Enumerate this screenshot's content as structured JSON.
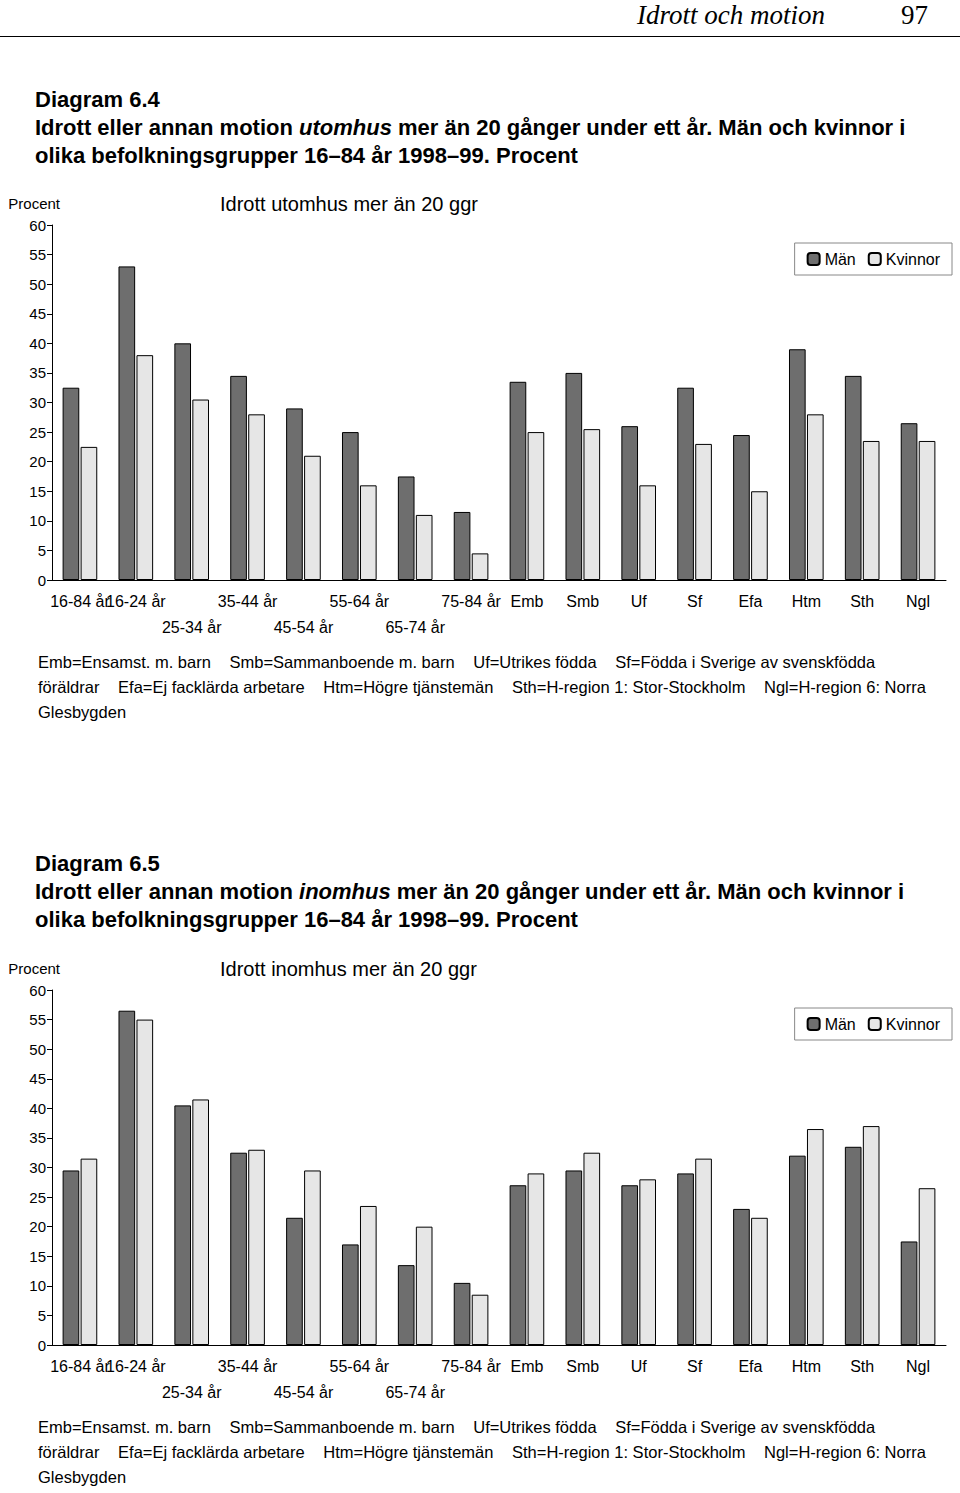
{
  "page": {
    "header": {
      "title": "Idrott och motion",
      "page": "97"
    },
    "figures": [
      {
        "label": "Diagram 6.4",
        "caption": [
          {
            "text": "Idrott eller annan motion "
          },
          {
            "text": "utomhus",
            "style": "italic"
          },
          {
            "text": " mer än 20 gånger under ett år. Män och kvinnor i olika befolkningsgrupper 16–84 år 1998–99. Procent"
          }
        ],
        "notes": [
          "Emb=Ensamst. m. barn",
          "Smb=Sammanboende m. barn",
          "Uf=Utrikes födda",
          "Sf=Födda i Sverige av svenskfödda föräldrar",
          "Efa=Ej facklärda arbetare",
          "Htm=Högre tjänstemän",
          "Sth=H-region 1: Stor-Stockholm",
          "Ngl=H-region 6: Norra Glesbygden"
        ]
      },
      {
        "label": "Diagram 6.5",
        "caption": [
          {
            "text": "Idrott eller annan motion "
          },
          {
            "text": "inomhus",
            "style": "italic"
          },
          {
            "text": " mer än 20 gånger under ett år. Män och kvinnor i olika befolkningsgrupper 16–84 år 1998–99. Procent"
          }
        ],
        "notes": [
          "Emb=Ensamst. m. barn",
          "Smb=Sammanboende m. barn",
          "Uf=Utrikes födda",
          "Sf=Födda i Sverige av svenskfödda föräldrar",
          "Efa=Ej facklärda arbetare",
          "Htm=Högre tjänstemän",
          "Sth=H-region 1: Stor-Stockholm",
          "Ngl=H-region 6: Norra Glesbygden"
        ]
      }
    ]
  },
  "chart_data": [
    {
      "type": "bar",
      "title": "Idrott utomhus mer än 20 ggr",
      "y_label": "Procent",
      "categories": [
        "16-84 år",
        "16-24 år",
        "25-34 år",
        "35-44 år",
        "45-54 år",
        "55-64 år",
        "65-74 år",
        "75-84 år",
        "Emb",
        "Smb",
        "Uf",
        "Sf",
        "Efa",
        "Htm",
        "Sth",
        "Ngl"
      ],
      "series": [
        {
          "name": "Män",
          "color": "#6e6e6e",
          "values": [
            32.5,
            53,
            40,
            34.5,
            29,
            25,
            17.5,
            11.5,
            33.5,
            35,
            26,
            32.5,
            24.5,
            39,
            34.5,
            26.5
          ]
        },
        {
          "name": "Kvinnor",
          "color": "#e6e6e6",
          "values": [
            22.5,
            38,
            30.5,
            28,
            21,
            16,
            11,
            4.5,
            25,
            25.5,
            16,
            23,
            15,
            28,
            23.5,
            23.5
          ]
        }
      ],
      "ylim": [
        0,
        60
      ],
      "yticks": [
        0,
        5,
        10,
        15,
        20,
        25,
        30,
        35,
        40,
        45,
        50,
        55,
        60
      ],
      "grid": false,
      "legend": "top-right"
    },
    {
      "type": "bar",
      "title": "Idrott inomhus mer än 20 ggr",
      "y_label": "Procent",
      "categories": [
        "16-84 år",
        "16-24 år",
        "25-34 år",
        "35-44 år",
        "45-54 år",
        "55-64 år",
        "65-74 år",
        "75-84 år",
        "Emb",
        "Smb",
        "Uf",
        "Sf",
        "Efa",
        "Htm",
        "Sth",
        "Ngl"
      ],
      "series": [
        {
          "name": "Män",
          "color": "#6e6e6e",
          "values": [
            29.5,
            56.5,
            40.5,
            32.5,
            21.5,
            17,
            13.5,
            10.5,
            27,
            29.5,
            27,
            29,
            23,
            32,
            33.5,
            17.5
          ]
        },
        {
          "name": "Kvinnor",
          "color": "#e6e6e6",
          "values": [
            31.5,
            55,
            41.5,
            33,
            29.5,
            23.5,
            20,
            8.5,
            29,
            32.5,
            28,
            31.5,
            21.5,
            36.5,
            37,
            26.5
          ]
        }
      ],
      "ylim": [
        0,
        60
      ],
      "yticks": [
        0,
        5,
        10,
        15,
        20,
        25,
        30,
        35,
        40,
        45,
        50,
        55,
        60
      ],
      "grid": false,
      "legend": "top-right"
    }
  ]
}
